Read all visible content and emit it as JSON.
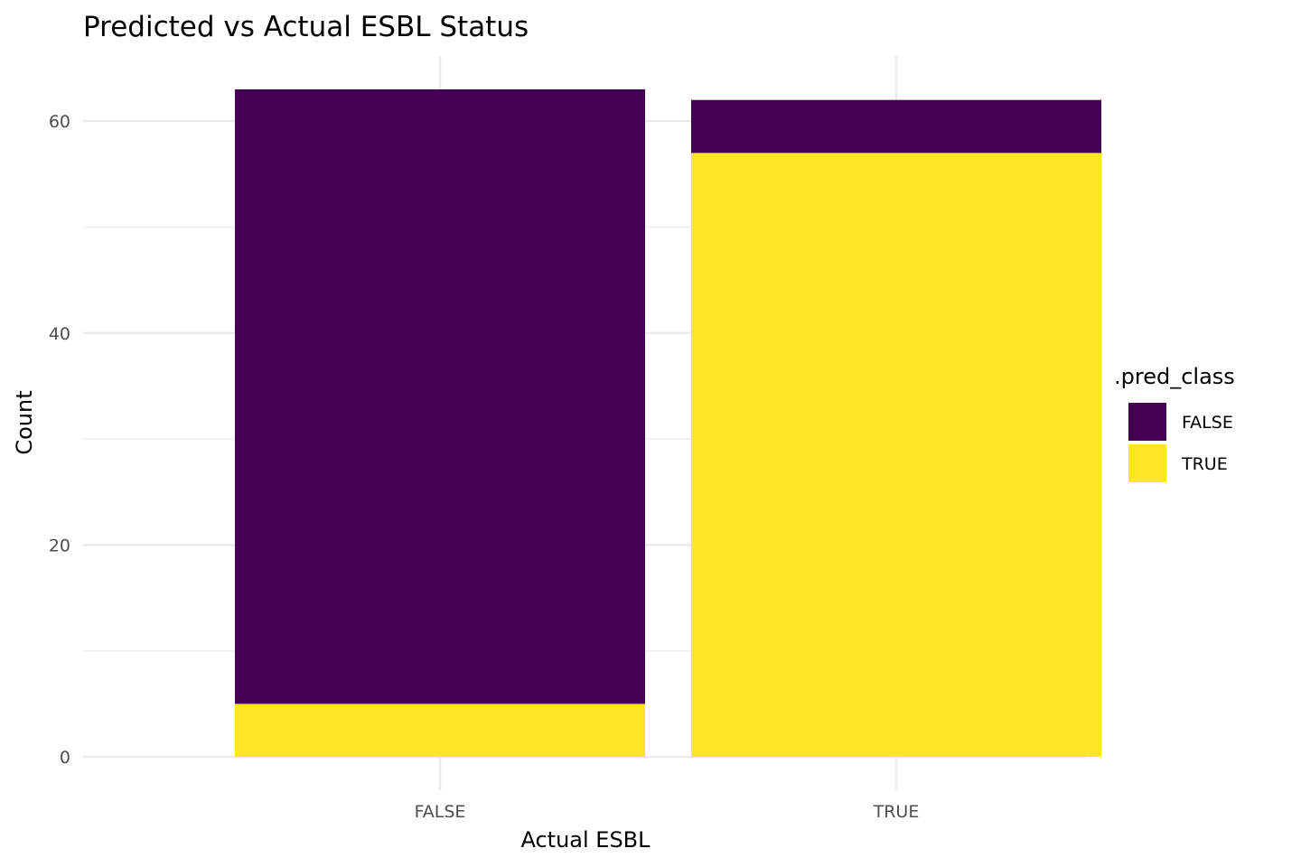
{
  "chart_data": {
    "type": "bar",
    "stacked": true,
    "title": "Predicted vs Actual ESBL Status",
    "xlabel": "Actual ESBL",
    "ylabel": "Count",
    "categories": [
      "FALSE",
      "TRUE"
    ],
    "series": [
      {
        "name": "FALSE",
        "color": "#440154",
        "values": [
          58,
          5
        ]
      },
      {
        "name": "TRUE",
        "color": "#FDE725",
        "values": [
          5,
          57
        ]
      }
    ],
    "ylim": [
      -3.15,
      66.15
    ],
    "yticks": [
      0,
      20,
      40,
      60
    ],
    "ytick_labels": [
      "0",
      "20",
      "40",
      "60"
    ],
    "grid": true,
    "legend": {
      "title": ".pred_class",
      "placement": "right"
    }
  }
}
